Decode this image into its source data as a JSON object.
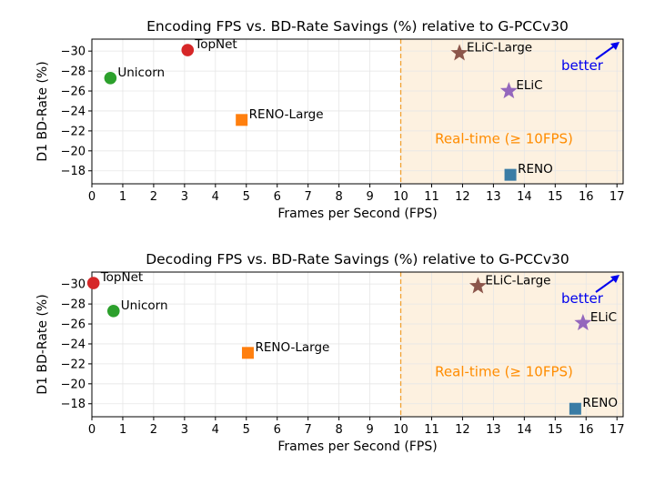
{
  "chart_data": [
    {
      "type": "scatter",
      "title": "Encoding FPS vs. BD-Rate Savings (%) relative to G-PCCv30",
      "xlabel": "Frames per Second (FPS)",
      "ylabel": "D1 BD-Rate (%)",
      "xlim": [
        0,
        17.2
      ],
      "ylim": [
        -16.7,
        -31.2
      ],
      "xticks": [
        "0",
        "1",
        "2",
        "3",
        "4",
        "5",
        "6",
        "7",
        "8",
        "9",
        "10",
        "11",
        "12",
        "13",
        "14",
        "15",
        "16",
        "17"
      ],
      "yticks": [
        "−18",
        "−20",
        "−22",
        "−24",
        "−26",
        "−28",
        "−30"
      ],
      "ytick_values": [
        -18,
        -20,
        -22,
        -24,
        -26,
        -28,
        -30
      ],
      "grid": true,
      "realtime_threshold": 10,
      "realtime_label": "Real-time (≥ 10FPS)",
      "better_label": "better",
      "points": [
        {
          "name": "TopNet",
          "x": 3.1,
          "y": -30.1,
          "marker": "circle",
          "color": "#d62728"
        },
        {
          "name": "Unicorn",
          "x": 0.6,
          "y": -27.3,
          "marker": "circle",
          "color": "#2ca02c"
        },
        {
          "name": "RENO-Large",
          "x": 4.85,
          "y": -23.1,
          "marker": "square",
          "color": "#ff7f0e"
        },
        {
          "name": "ELiC-Large",
          "x": 11.9,
          "y": -29.8,
          "marker": "star",
          "color": "#8c564b"
        },
        {
          "name": "ELiC",
          "x": 13.5,
          "y": -26.0,
          "marker": "star",
          "color": "#9467bd"
        },
        {
          "name": "RENO",
          "x": 13.55,
          "y": -17.6,
          "marker": "square",
          "color": "#3a7ca5"
        }
      ]
    },
    {
      "type": "scatter",
      "title": "Decoding FPS vs. BD-Rate Savings (%) relative to G-PCCv30",
      "xlabel": "Frames per Second (FPS)",
      "ylabel": "D1 BD-Rate (%)",
      "xlim": [
        0,
        17.2
      ],
      "ylim": [
        -16.7,
        -31.2
      ],
      "xticks": [
        "0",
        "1",
        "2",
        "3",
        "4",
        "5",
        "6",
        "7",
        "8",
        "9",
        "10",
        "11",
        "12",
        "13",
        "14",
        "15",
        "16",
        "17"
      ],
      "yticks": [
        "−18",
        "−20",
        "−22",
        "−24",
        "−26",
        "−28",
        "−30"
      ],
      "ytick_values": [
        -18,
        -20,
        -22,
        -24,
        -26,
        -28,
        -30
      ],
      "grid": true,
      "realtime_threshold": 10,
      "realtime_label": "Real-time (≥ 10FPS)",
      "better_label": "better",
      "points": [
        {
          "name": "TopNet",
          "x": 0.05,
          "y": -30.1,
          "marker": "circle",
          "color": "#d62728"
        },
        {
          "name": "Unicorn",
          "x": 0.7,
          "y": -27.3,
          "marker": "circle",
          "color": "#2ca02c"
        },
        {
          "name": "RENO-Large",
          "x": 5.05,
          "y": -23.1,
          "marker": "square",
          "color": "#ff7f0e"
        },
        {
          "name": "ELiC-Large",
          "x": 12.5,
          "y": -29.8,
          "marker": "star",
          "color": "#8c564b"
        },
        {
          "name": "ELiC",
          "x": 15.9,
          "y": -26.1,
          "marker": "star",
          "color": "#9467bd"
        },
        {
          "name": "RENO",
          "x": 15.65,
          "y": -17.5,
          "marker": "square",
          "color": "#3a7ca5"
        }
      ]
    }
  ],
  "colors": {
    "realtime_fill": "#fdf1e0",
    "realtime_line": "#f0a030",
    "realtime_text": "#ff8c00",
    "better": "#0000ee",
    "grid": "#e6e6e6"
  }
}
